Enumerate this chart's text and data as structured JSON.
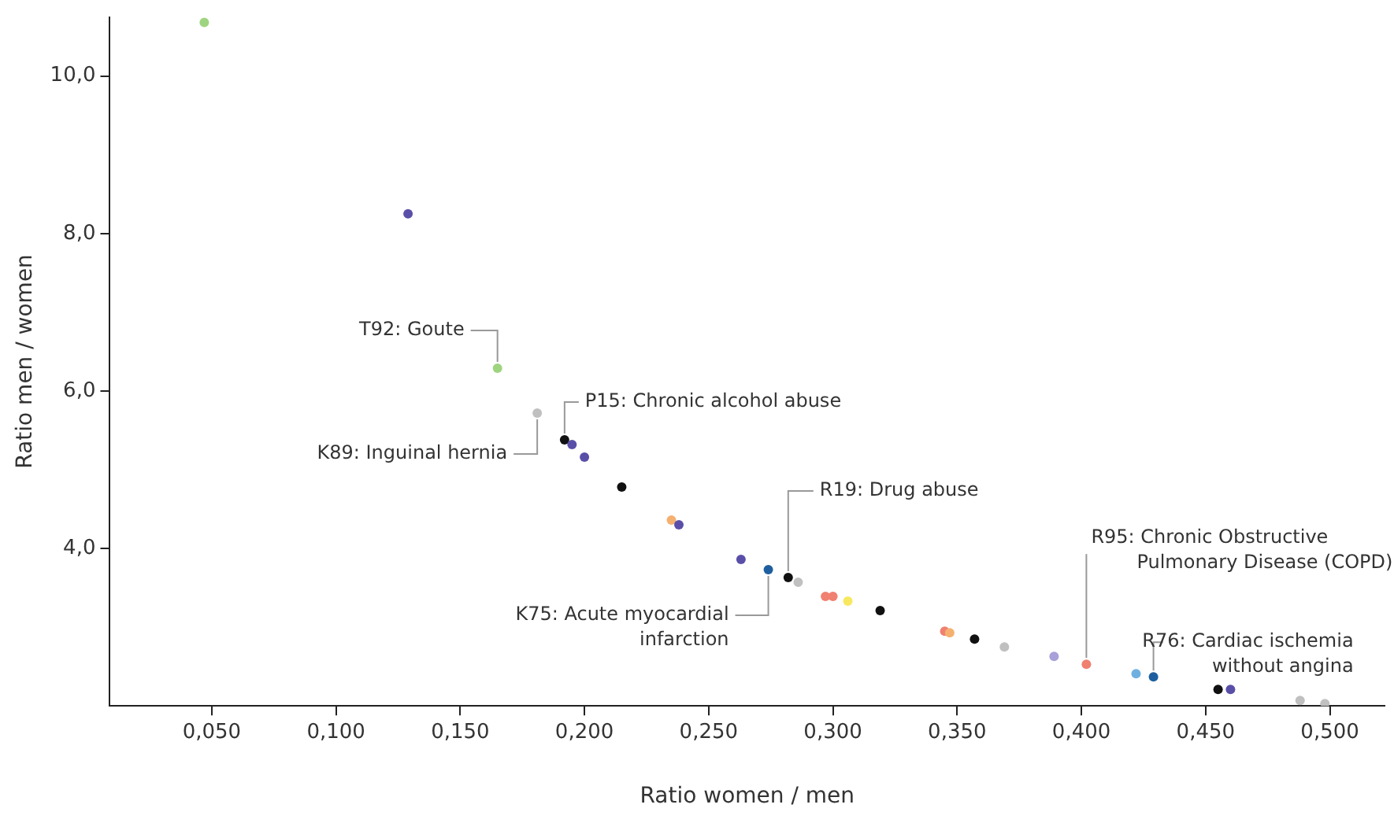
{
  "chart_data": {
    "type": "scatter",
    "xlabel": "Ratio women / men",
    "ylabel": "Ratio men / women",
    "xlim": [
      0.009,
      0.522
    ],
    "ylim": [
      2.0,
      10.75
    ],
    "xticks": [
      {
        "value": 0.05,
        "label": "0,050"
      },
      {
        "value": 0.1,
        "label": "0,100"
      },
      {
        "value": 0.15,
        "label": "0,150"
      },
      {
        "value": 0.2,
        "label": "0,200"
      },
      {
        "value": 0.25,
        "label": "0,250"
      },
      {
        "value": 0.3,
        "label": "0,300"
      },
      {
        "value": 0.35,
        "label": "0,350"
      },
      {
        "value": 0.4,
        "label": "0,400"
      },
      {
        "value": 0.45,
        "label": "0,450"
      },
      {
        "value": 0.5,
        "label": "0,500"
      }
    ],
    "yticks": [
      {
        "value": 4,
        "label": "4,0"
      },
      {
        "value": 6,
        "label": "6,0"
      },
      {
        "value": 8,
        "label": "8,0"
      },
      {
        "value": 10,
        "label": "10,0"
      }
    ],
    "grid": false,
    "legend": false,
    "marker": "circle",
    "series": [
      {
        "x": [
          0.047,
          0.129,
          0.165,
          0.181,
          0.192,
          0.195,
          0.2,
          0.215,
          0.235,
          0.238,
          0.263,
          0.274,
          0.282,
          0.286,
          0.297,
          0.3,
          0.306,
          0.319,
          0.345,
          0.347,
          0.357,
          0.369,
          0.389,
          0.402,
          0.422,
          0.429,
          0.455,
          0.46,
          0.488,
          0.498
        ],
        "values": [
          10.68,
          8.25,
          6.29,
          5.72,
          5.38,
          5.32,
          5.16,
          4.78,
          4.36,
          4.3,
          3.86,
          3.73,
          3.63,
          3.57,
          3.39,
          3.39,
          3.33,
          3.21,
          2.95,
          2.93,
          2.85,
          2.75,
          2.63,
          2.53,
          2.41,
          2.37,
          2.21,
          2.21,
          2.07,
          2.03
        ],
        "colors": [
          "#9ed47f",
          "#5a4fa8",
          "#9ed47f",
          "#c0c0c0",
          "#111111",
          "#5a4fa8",
          "#5a4fa8",
          "#111111",
          "#f5b070",
          "#5a4fa8",
          "#5a4fa8",
          "#1f5f9f",
          "#111111",
          "#c0c0c0",
          "#f08070",
          "#f08070",
          "#f8e860",
          "#111111",
          "#f08070",
          "#f5b070",
          "#111111",
          "#c0c0c0",
          "#a8a0d8",
          "#f08070",
          "#70b0e0",
          "#1f5f9f",
          "#111111",
          "#5a4fa8",
          "#c0c0c0",
          "#c0c0c0"
        ]
      }
    ],
    "annotations": [
      {
        "text": "T92: Goute",
        "x": 0.165,
        "y": 6.29
      },
      {
        "text": "K89: Inguinal hernia",
        "x": 0.181,
        "y": 5.72
      },
      {
        "text": "P15: Chronic alcohol abuse",
        "x": 0.192,
        "y": 5.38
      },
      {
        "text": "K75: Acute myocardial\ninfarction",
        "x": 0.274,
        "y": 3.73
      },
      {
        "text": "R19: Drug abuse",
        "x": 0.282,
        "y": 3.63
      },
      {
        "text": "R95: Chronic Obstructive\nPulmonary Disease (COPD)",
        "x": 0.402,
        "y": 2.53
      },
      {
        "text": "R76: Cardiac ischemia\nwithout angina",
        "x": 0.429,
        "y": 2.37
      }
    ]
  }
}
